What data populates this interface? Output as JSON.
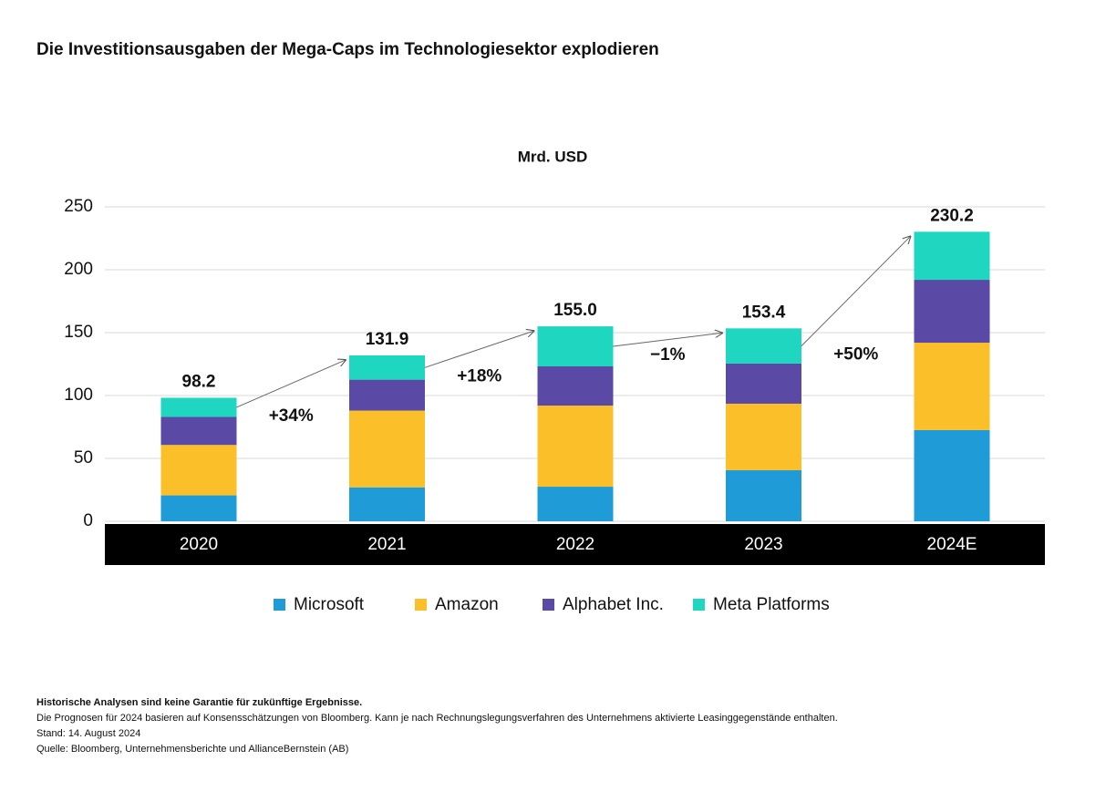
{
  "chart_data": {
    "type": "stacked-bar",
    "title": "Die Investitionsausgaben der Mega-Caps im Technologiesektor explodieren",
    "subtitle": "Mrd. USD",
    "categories": [
      "2020",
      "2021",
      "2022",
      "2023",
      "2024E"
    ],
    "series": [
      {
        "name": "Microsoft",
        "color": "#1f9bd7",
        "values": [
          20.6,
          27.0,
          27.5,
          40.6,
          72.5
        ]
      },
      {
        "name": "Amazon",
        "color": "#fbbf2a",
        "values": [
          40.1,
          61.0,
          64.5,
          52.9,
          69.5
        ]
      },
      {
        "name": "Alphabet Inc.",
        "color": "#5a4aa5",
        "values": [
          22.3,
          24.6,
          31.2,
          31.9,
          50.0
        ]
      },
      {
        "name": "Meta Platforms",
        "color": "#1fd6c0",
        "values": [
          15.2,
          19.3,
          31.8,
          28.0,
          38.2
        ]
      }
    ],
    "totals": [
      98.2,
      131.9,
      155.0,
      153.4,
      230.2
    ],
    "total_labels": [
      "98.2",
      "131.9",
      "155.0",
      "153.4",
      "230.2"
    ],
    "changes": [
      "+34%",
      "+18%",
      "−1%",
      "+50%"
    ],
    "ylim": [
      0,
      250
    ],
    "yticks": [
      0,
      50,
      100,
      150,
      200,
      250
    ],
    "grid": true,
    "notes": [
      "Historische Analysen sind keine Garantie für zukünftige Ergebnisse.",
      "Die Prognosen für 2024 basieren auf Konsensschätzungen von Bloomberg. Kann je nach Rechnungslegungsverfahren des Unternehmens aktivierte Leasinggegenstände enthalten.",
      "Stand: 14. August 2024",
      "Quelle: Bloomberg, Unternehmensberichte und AllianceBernstein (AB)"
    ]
  }
}
